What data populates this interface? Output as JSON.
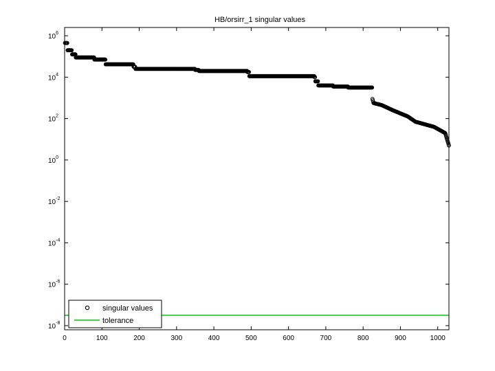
{
  "chart_data": {
    "type": "scatter",
    "title": "HB/orsirr_1 singular values",
    "xlabel": "",
    "ylabel": "",
    "xlim": [
      0,
      1030
    ],
    "ylim_log10": [
      -8.2,
      6.4
    ],
    "y_scale": "log",
    "x_ticks": [
      0,
      100,
      200,
      300,
      400,
      500,
      600,
      700,
      800,
      900,
      1000
    ],
    "y_ticks_exponents": [
      -8,
      -6,
      -4,
      -2,
      0,
      2,
      4,
      6
    ],
    "y_tick_base": "10",
    "grid": false,
    "legend_position": "bottom-left",
    "legend": [
      "singular values",
      "tolerance"
    ],
    "colors": {
      "singular_values": "#000000",
      "tolerance": "#00cc00",
      "axes": "#000000"
    },
    "series": [
      {
        "name": "singular values",
        "style": "markers-open-circle",
        "breakpoints_log10": [
          [
            1,
            5.65
          ],
          [
            8,
            5.3
          ],
          [
            20,
            5.1
          ],
          [
            30,
            4.95
          ],
          [
            80,
            4.85
          ],
          [
            110,
            4.62
          ],
          [
            185,
            4.5
          ],
          [
            190,
            4.4
          ],
          [
            350,
            4.35
          ],
          [
            360,
            4.3
          ],
          [
            490,
            4.25
          ],
          [
            495,
            4.05
          ],
          [
            670,
            4.0
          ],
          [
            672,
            3.8
          ],
          [
            680,
            3.6
          ],
          [
            720,
            3.55
          ],
          [
            760,
            3.5
          ],
          [
            823,
            3.5
          ],
          [
            825,
            2.95
          ],
          [
            828,
            2.75
          ],
          [
            850,
            2.65
          ],
          [
            880,
            2.4
          ],
          [
            920,
            2.1
          ],
          [
            940,
            1.85
          ],
          [
            990,
            1.6
          ],
          [
            1020,
            1.3
          ],
          [
            1030,
            0.7
          ]
        ]
      },
      {
        "name": "tolerance",
        "style": "line",
        "y_log10": -7.5
      }
    ]
  }
}
